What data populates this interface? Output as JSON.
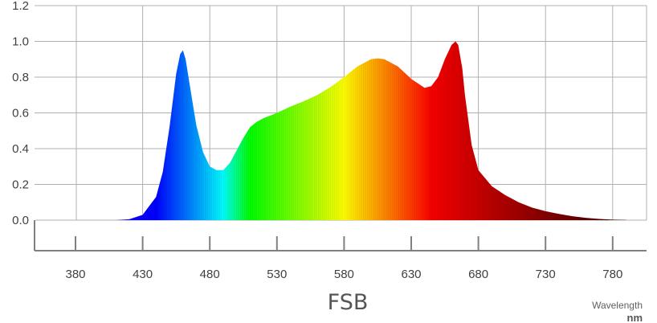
{
  "chart_data": {
    "type": "area",
    "title": "FSB",
    "xlabel": "Wavelength",
    "xunit": "nm",
    "ylabel": "",
    "xlim": [
      380,
      800
    ],
    "ylim": [
      0,
      1.2
    ],
    "grid": true,
    "legend": "none",
    "yticks": [
      "0.0",
      "0.2",
      "0.4",
      "0.6",
      "0.8",
      "1.0",
      "1.2"
    ],
    "xticks": [
      "380",
      "430",
      "480",
      "530",
      "580",
      "630",
      "680",
      "730",
      "780"
    ],
    "series": [
      {
        "x": [
          390,
          400,
          410,
          420,
          430,
          440,
          445,
          450,
          455,
          458,
          460,
          462,
          465,
          468,
          470,
          475,
          480,
          485,
          490,
          495,
          500,
          505,
          510,
          515,
          520,
          525,
          530,
          540,
          550,
          560,
          570,
          580,
          590,
          600,
          605,
          610,
          620,
          630,
          640,
          645,
          650,
          655,
          660,
          663,
          665,
          668,
          670,
          675,
          680,
          690,
          700,
          710,
          720,
          730,
          740,
          750,
          760,
          770,
          780,
          790
        ],
        "y": [
          0.0,
          0.0,
          0.0,
          0.005,
          0.03,
          0.13,
          0.27,
          0.52,
          0.82,
          0.93,
          0.95,
          0.9,
          0.76,
          0.62,
          0.53,
          0.38,
          0.3,
          0.28,
          0.28,
          0.32,
          0.39,
          0.46,
          0.52,
          0.55,
          0.57,
          0.585,
          0.6,
          0.635,
          0.665,
          0.7,
          0.745,
          0.8,
          0.86,
          0.9,
          0.905,
          0.9,
          0.86,
          0.79,
          0.74,
          0.75,
          0.8,
          0.9,
          0.98,
          1.0,
          0.98,
          0.85,
          0.7,
          0.42,
          0.28,
          0.19,
          0.14,
          0.1,
          0.07,
          0.05,
          0.035,
          0.022,
          0.013,
          0.007,
          0.003,
          0.001
        ]
      }
    ]
  }
}
